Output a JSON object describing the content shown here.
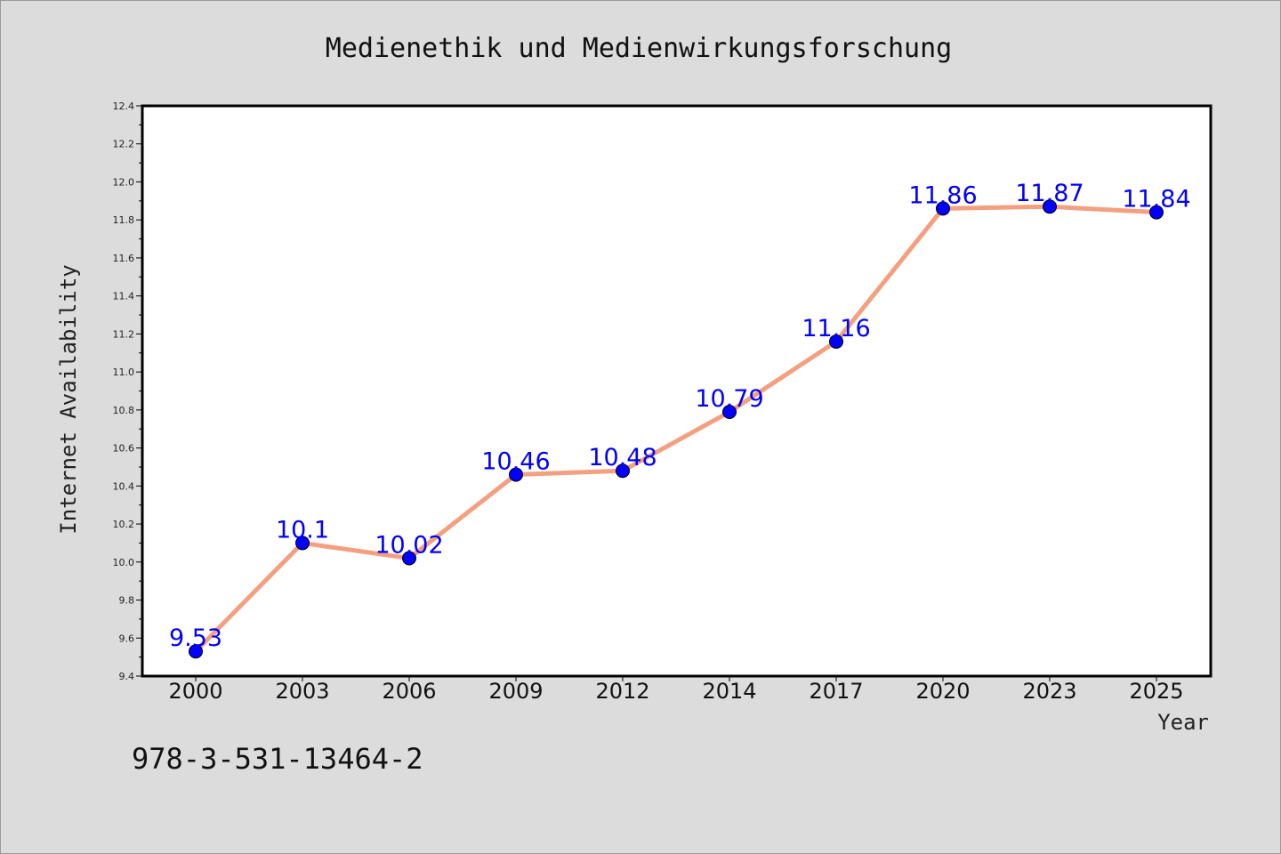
{
  "chart_data": {
    "type": "line",
    "title": "Medienethik und Medienwirkungsforschung",
    "xlabel": "Year",
    "ylabel": "Internet Availability",
    "categories": [
      "2000",
      "2003",
      "2006",
      "2009",
      "2012",
      "2014",
      "2017",
      "2020",
      "2023",
      "2025"
    ],
    "series": [
      {
        "values": [
          9.53,
          10.1,
          10.02,
          10.46,
          10.48,
          10.79,
          11.16,
          11.86,
          11.87,
          11.84
        ]
      }
    ],
    "data_labels": [
      "9.53",
      "10.1",
      "10.02",
      "10.46",
      "10.48",
      "10.79",
      "11.16",
      "11.86",
      "11.87",
      "11.84"
    ],
    "ylim": [
      9.4,
      12.4
    ],
    "yticks": [
      "9.4",
      "9.6",
      "9.8",
      "10.0",
      "10.2",
      "10.4",
      "10.6",
      "10.8",
      "11.0",
      "11.2",
      "11.4",
      "11.6",
      "11.8",
      "12.0",
      "12.2",
      "12.4"
    ],
    "grid": false,
    "colors": {
      "line": "#f4a080",
      "marker": "#0000ff",
      "data_label": "#0000ff",
      "plot_background": "#ffffff",
      "page_background": "#dcdcdc"
    }
  },
  "footnote": "978-3-531-13464-2"
}
